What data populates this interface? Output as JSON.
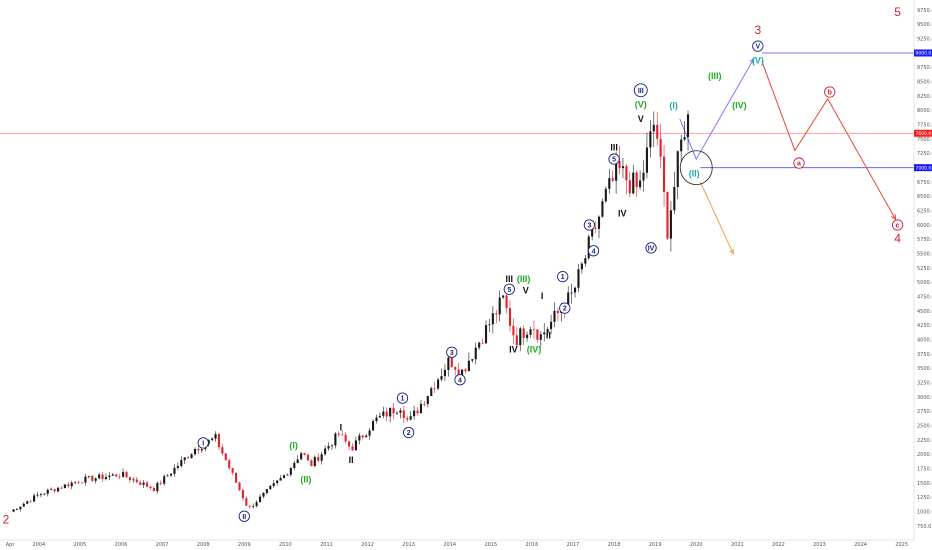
{
  "chart_data": {
    "type": "candlestick",
    "interval": "monthly",
    "ylim": [
      0,
      10000
    ],
    "x_ticks": [
      "Apr",
      "2004",
      "2005",
      "2006",
      "2007",
      "2008",
      "2009",
      "2010",
      "2011",
      "2012",
      "2013",
      "2014",
      "2015",
      "2016",
      "2017",
      "2018",
      "2019",
      "2020",
      "2021",
      "2022",
      "2023",
      "2024",
      "2025"
    ],
    "y_ticks": [
      "750.0",
      "1000.0",
      "1250.0",
      "1500.0",
      "1750.0",
      "2000.0",
      "2250.0",
      "2500.0",
      "2750.0",
      "3000.0",
      "3250.0",
      "3500.0",
      "3750.0",
      "4000.0",
      "4250.0",
      "4500.0",
      "4750.0",
      "5000.0",
      "5250.0",
      "5500.0",
      "5750.0",
      "6000.0",
      "6250.0",
      "6500.0",
      "6750.0",
      "7000.0",
      "7250.0",
      "7500.0",
      "7750.0",
      "8000.0",
      "8250.0",
      "8500.0",
      "8750.0",
      "9000.0",
      "9250.0",
      "9500.0",
      "9750.0"
    ],
    "price_tags": [
      {
        "text": "9000.0",
        "value": 9000,
        "color": "#1a1aff"
      },
      {
        "text": "7600.0",
        "value": 7600,
        "color": "#ff1a1a"
      },
      {
        "text": "7000.0",
        "value": 7000,
        "color": "#1a1aff"
      }
    ],
    "horizontal_lines": [
      {
        "value": 7600,
        "color": "#ff8080"
      },
      {
        "value": 7000,
        "color": "#4d4dff"
      },
      {
        "value": 9000,
        "color": "#4d4dff"
      }
    ],
    "anchors": [
      [
        2003.3,
        1000
      ],
      [
        2004.0,
        1300
      ],
      [
        2005.0,
        1550
      ],
      [
        2006.0,
        1650
      ],
      [
        2006.8,
        1400
      ],
      [
        2007.8,
        2100
      ],
      [
        2008.3,
        2280
      ],
      [
        2009.1,
        1050
      ],
      [
        2010.0,
        1650
      ],
      [
        2010.4,
        2050
      ],
      [
        2010.6,
        1800
      ],
      [
        2011.3,
        2350
      ],
      [
        2011.6,
        2100
      ],
      [
        2012.2,
        2600
      ],
      [
        2012.8,
        2850
      ],
      [
        2013.0,
        2550
      ],
      [
        2014.0,
        3650
      ],
      [
        2014.3,
        3450
      ],
      [
        2015.3,
        4700
      ],
      [
        2015.6,
        4000
      ],
      [
        2016.0,
        4300
      ],
      [
        2016.2,
        4050
      ],
      [
        2017.0,
        4800
      ],
      [
        2017.8,
        6500
      ],
      [
        2018.1,
        6950
      ],
      [
        2018.6,
        6600
      ],
      [
        2019.0,
        7850
      ],
      [
        2019.3,
        5950
      ],
      [
        2019.7,
        7700
      ],
      [
        2019.85,
        7900
      ]
    ],
    "wave_labels": [
      {
        "text": "2",
        "x": 2003.2,
        "y": 850,
        "style": "big",
        "color": "#cc2233"
      },
      {
        "text": "I",
        "x": 2008.0,
        "y": 2200,
        "style": "circle",
        "color": "#1a237e"
      },
      {
        "text": "II",
        "x": 2009.0,
        "y": 920,
        "style": "circle",
        "color": "#1a237e"
      },
      {
        "text": "(I)",
        "x": 2010.2,
        "y": 2150,
        "style": "plain",
        "color": "#22aa22"
      },
      {
        "text": "(II)",
        "x": 2010.5,
        "y": 1560,
        "style": "plain",
        "color": "#22aa22"
      },
      {
        "text": "I",
        "x": 2011.35,
        "y": 2470,
        "style": "plain",
        "color": "#111111"
      },
      {
        "text": "II",
        "x": 2011.6,
        "y": 1900,
        "style": "plain",
        "color": "#111111"
      },
      {
        "text": "1",
        "x": 2012.85,
        "y": 2980,
        "style": "circle",
        "color": "#1a237e"
      },
      {
        "text": "2",
        "x": 2013.0,
        "y": 2380,
        "style": "circle",
        "color": "#1a237e"
      },
      {
        "text": "3",
        "x": 2014.05,
        "y": 3780,
        "style": "circle",
        "color": "#1a237e"
      },
      {
        "text": "4",
        "x": 2014.25,
        "y": 3300,
        "style": "circle",
        "color": "#1a237e"
      },
      {
        "text": "III",
        "x": 2015.45,
        "y": 5060,
        "style": "plain",
        "color": "#111111"
      },
      {
        "text": "5",
        "x": 2015.45,
        "y": 4880,
        "style": "circle",
        "color": "#1a237e"
      },
      {
        "text": "(III)",
        "x": 2015.8,
        "y": 5060,
        "style": "plain",
        "color": "#22aa22"
      },
      {
        "text": "V",
        "x": 2015.85,
        "y": 4860,
        "style": "plain",
        "color": "#111111"
      },
      {
        "text": "IV",
        "x": 2015.55,
        "y": 3830,
        "style": "plain",
        "color": "#111111"
      },
      {
        "text": "(IV)",
        "x": 2016.05,
        "y": 3830,
        "style": "plain",
        "color": "#22aa22"
      },
      {
        "text": "I",
        "x": 2016.25,
        "y": 4760,
        "style": "plain",
        "color": "#111111"
      },
      {
        "text": "II",
        "x": 2016.4,
        "y": 4070,
        "style": "plain",
        "color": "#111111"
      },
      {
        "text": "1",
        "x": 2016.75,
        "y": 5100,
        "style": "circle",
        "color": "#1a237e"
      },
      {
        "text": "2",
        "x": 2016.8,
        "y": 4550,
        "style": "circle",
        "color": "#1a237e"
      },
      {
        "text": "3",
        "x": 2017.4,
        "y": 6000,
        "style": "circle",
        "color": "#1a237e"
      },
      {
        "text": "4",
        "x": 2017.5,
        "y": 5550,
        "style": "circle",
        "color": "#1a237e"
      },
      {
        "text": "III",
        "x": 2018.0,
        "y": 7350,
        "style": "plain",
        "color": "#111111"
      },
      {
        "text": "5",
        "x": 2018.0,
        "y": 7150,
        "style": "circle",
        "color": "#1a237e"
      },
      {
        "text": "IV",
        "x": 2018.2,
        "y": 6200,
        "style": "plain",
        "color": "#111111"
      },
      {
        "text": "III",
        "x": 2018.65,
        "y": 8350,
        "style": "circle",
        "color": "#1a237e"
      },
      {
        "text": "(V)",
        "x": 2018.65,
        "y": 8100,
        "style": "plain",
        "color": "#22aa22"
      },
      {
        "text": "V",
        "x": 2018.65,
        "y": 7850,
        "style": "plain",
        "color": "#111111"
      },
      {
        "text": "IV",
        "x": 2018.9,
        "y": 5600,
        "style": "circle",
        "color": "#1a237e"
      },
      {
        "text": "(I)",
        "x": 2019.45,
        "y": 8080,
        "style": "plain",
        "color": "#22aaaa"
      },
      {
        "text": "(II)",
        "x": 2019.95,
        "y": 6900,
        "style": "plain",
        "color": "#22aaaa"
      },
      {
        "text": "(III)",
        "x": 2020.45,
        "y": 8600,
        "style": "plain",
        "color": "#22aa22"
      },
      {
        "text": "(IV)",
        "x": 2021.05,
        "y": 8080,
        "style": "plain",
        "color": "#22aa22"
      },
      {
        "text": "V",
        "x": 2021.5,
        "y": 9120,
        "style": "circle",
        "color": "#1a237e"
      },
      {
        "text": "(V)",
        "x": 2021.5,
        "y": 8870,
        "style": "plain",
        "color": "#22aaaa"
      },
      {
        "text": "3",
        "x": 2021.5,
        "y": 9380,
        "style": "big",
        "color": "#cc2233"
      },
      {
        "text": "a",
        "x": 2022.5,
        "y": 7080,
        "style": "circle-red",
        "color": "#cc2233"
      },
      {
        "text": "b",
        "x": 2023.25,
        "y": 8320,
        "style": "circle-red",
        "color": "#cc2233"
      },
      {
        "text": "c",
        "x": 2024.9,
        "y": 6000,
        "style": "circle-red",
        "color": "#cc2233"
      },
      {
        "text": "4",
        "x": 2024.9,
        "y": 5750,
        "style": "big",
        "color": "#cc2233"
      },
      {
        "text": "5",
        "x": 2024.9,
        "y": 9700,
        "style": "big",
        "color": "#cc2233"
      }
    ],
    "projection_paths": [
      {
        "color": "#7b7bff",
        "points": [
          [
            2019.6,
            7850
          ],
          [
            2020.0,
            7150
          ],
          [
            2021.4,
            8900
          ]
        ]
      },
      {
        "color": "#e8453c",
        "points": [
          [
            2021.6,
            8850
          ],
          [
            2022.4,
            7300
          ],
          [
            2023.2,
            8200
          ],
          [
            2024.85,
            6100
          ]
        ]
      },
      {
        "color": "#f0a050",
        "points": [
          [
            2020.1,
            6750
          ],
          [
            2020.9,
            5500
          ]
        ]
      }
    ],
    "ellipse": {
      "x": 2020.0,
      "y": 7000
    }
  }
}
